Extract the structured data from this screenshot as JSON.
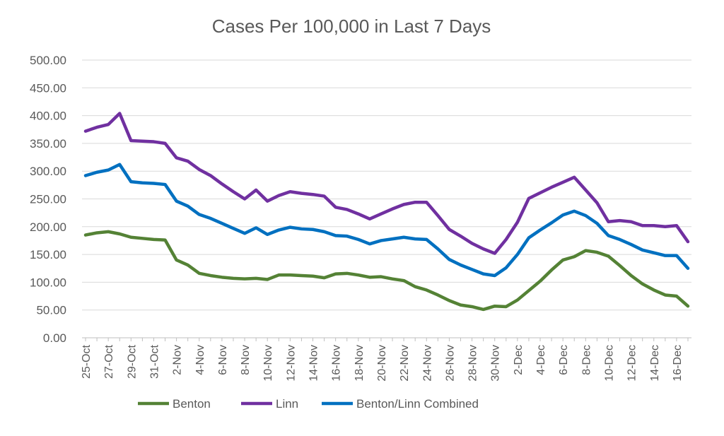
{
  "chart_data": {
    "type": "line",
    "title": "Cases Per 100,000 in Last 7 Days",
    "xlabel": "",
    "ylabel": "",
    "ylim": [
      0,
      500
    ],
    "yticks": [
      "0.00",
      "50.00",
      "100.00",
      "150.00",
      "200.00",
      "250.00",
      "300.00",
      "350.00",
      "400.00",
      "450.00",
      "500.00"
    ],
    "grid": true,
    "legend_position": "bottom",
    "categories": [
      "25-Oct",
      "26-Oct",
      "27-Oct",
      "28-Oct",
      "29-Oct",
      "30-Oct",
      "31-Oct",
      "1-Nov",
      "2-Nov",
      "3-Nov",
      "4-Nov",
      "5-Nov",
      "6-Nov",
      "7-Nov",
      "8-Nov",
      "9-Nov",
      "10-Nov",
      "11-Nov",
      "12-Nov",
      "13-Nov",
      "14-Nov",
      "15-Nov",
      "16-Nov",
      "17-Nov",
      "18-Nov",
      "19-Nov",
      "20-Nov",
      "21-Nov",
      "22-Nov",
      "23-Nov",
      "24-Nov",
      "25-Nov",
      "26-Nov",
      "27-Nov",
      "28-Nov",
      "29-Nov",
      "30-Nov",
      "1-Dec",
      "2-Dec",
      "3-Dec",
      "4-Dec",
      "5-Dec",
      "6-Dec",
      "7-Dec",
      "8-Dec",
      "9-Dec",
      "10-Dec",
      "11-Dec",
      "12-Dec",
      "13-Dec",
      "14-Dec",
      "15-Dec",
      "16-Dec",
      "17-Dec"
    ],
    "tick_labels": [
      "25-Oct",
      "27-Oct",
      "29-Oct",
      "31-Oct",
      "2-Nov",
      "4-Nov",
      "6-Nov",
      "8-Nov",
      "10-Nov",
      "12-Nov",
      "14-Nov",
      "16-Nov",
      "18-Nov",
      "20-Nov",
      "22-Nov",
      "24-Nov",
      "26-Nov",
      "28-Nov",
      "30-Nov",
      "2-Dec",
      "4-Dec",
      "6-Dec",
      "8-Dec",
      "10-Dec",
      "12-Dec",
      "14-Dec",
      "16-Dec"
    ],
    "series": [
      {
        "name": "Benton",
        "color": "#548235",
        "values": [
          185,
          189,
          191,
          187,
          181,
          179,
          177,
          176,
          140,
          131,
          116,
          112,
          109,
          107,
          106,
          107,
          105,
          113,
          113,
          112,
          111,
          108,
          115,
          116,
          113,
          109,
          110,
          106,
          103,
          92,
          86,
          77,
          67,
          59,
          56,
          51,
          57,
          56,
          68,
          85,
          102,
          122,
          140,
          146,
          157,
          154,
          147,
          130,
          112,
          97,
          86,
          77,
          75,
          57
        ]
      },
      {
        "name": "Linn",
        "color": "#7030a0",
        "values": [
          372,
          379,
          384,
          404,
          355,
          354,
          353,
          350,
          324,
          318,
          303,
          292,
          277,
          263,
          250,
          266,
          246,
          256,
          263,
          260,
          258,
          255,
          235,
          231,
          223,
          214,
          223,
          232,
          240,
          244,
          244,
          220,
          195,
          183,
          170,
          160,
          152,
          177,
          208,
          251,
          261,
          271,
          280,
          289,
          266,
          243,
          209,
          211,
          209,
          202,
          202,
          200,
          202,
          173
        ]
      },
      {
        "name": "Benton/Linn Combined",
        "color": "#0070c0",
        "values": [
          292,
          298,
          302,
          312,
          281,
          279,
          278,
          276,
          246,
          237,
          222,
          215,
          206,
          197,
          188,
          198,
          186,
          194,
          199,
          196,
          195,
          191,
          184,
          183,
          177,
          169,
          175,
          178,
          181,
          178,
          177,
          160,
          141,
          131,
          123,
          115,
          112,
          126,
          150,
          180,
          194,
          207,
          221,
          228,
          220,
          206,
          184,
          177,
          168,
          158,
          153,
          148,
          148,
          125
        ]
      }
    ]
  }
}
